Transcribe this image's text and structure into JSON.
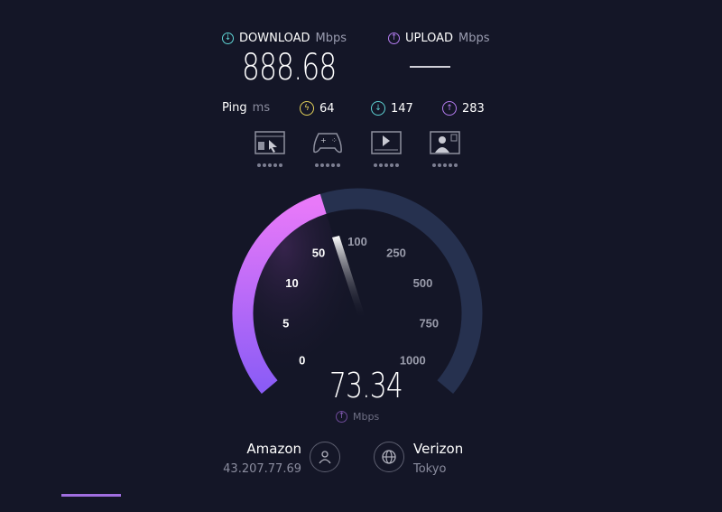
{
  "download": {
    "label": "DOWNLOAD",
    "unit": "Mbps",
    "value": "888.68"
  },
  "upload": {
    "label": "UPLOAD",
    "unit": "Mbps",
    "value": "—"
  },
  "ping": {
    "label": "Ping",
    "unit": "ms",
    "idle": "64",
    "download": "147",
    "upload": "283"
  },
  "gauge": {
    "ticks": [
      "0",
      "5",
      "10",
      "50",
      "100",
      "250",
      "500",
      "750",
      "1000"
    ],
    "value": "73.34",
    "unit": "Mbps",
    "mode": "upload",
    "fill_color": "#e879f9",
    "track_color": "#26314f"
  },
  "provider": {
    "name": "Amazon",
    "ip": "43.207.77.69"
  },
  "server": {
    "name": "Verizon",
    "location": "Tokyo"
  },
  "colors": {
    "download": "#5fd4d4",
    "upload": "#b47cf0",
    "idle": "#e6d45a"
  }
}
